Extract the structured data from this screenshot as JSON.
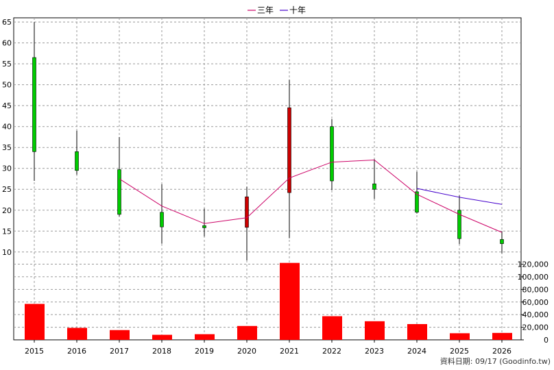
{
  "chart_data": {
    "type": "candlestick",
    "legend": [
      {
        "label": "三年",
        "color": "#cc0066"
      },
      {
        "label": "十年",
        "color": "#4400cc"
      }
    ],
    "categories": [
      "2015",
      "2016",
      "2017",
      "2018",
      "2019",
      "2020",
      "2021",
      "2022",
      "2023",
      "2024",
      "2025",
      "2026"
    ],
    "price_axis": {
      "ylim": [
        8,
        66
      ],
      "ticks": [
        10,
        15,
        20,
        25,
        30,
        35,
        40,
        45,
        50,
        55,
        60,
        65
      ]
    },
    "volume_axis": {
      "ylim": [
        0,
        126000
      ],
      "ticks": [
        0,
        20000,
        40000,
        60000,
        80000,
        100000,
        120000
      ],
      "tick_labels": [
        "0",
        "20,000",
        "40,000",
        "60,000",
        "80,000",
        "100,000",
        "120,000"
      ]
    },
    "candles": [
      {
        "year": "2015",
        "open": 34,
        "high": 65,
        "low": 27,
        "close": 56.5
      },
      {
        "year": "2016",
        "open": 29.5,
        "high": 39,
        "low": 28.5,
        "close": 34
      },
      {
        "year": "2017",
        "open": 19,
        "high": 37.5,
        "low": 18.5,
        "close": 29.7
      },
      {
        "year": "2018",
        "open": 16,
        "high": 26.2,
        "low": 12,
        "close": 19.5
      },
      {
        "year": "2019",
        "open": 15.8,
        "high": 20.4,
        "low": 13.7,
        "close": 16.3
      },
      {
        "year": "2020",
        "open": 23.2,
        "high": 25.6,
        "low": 8,
        "close": 15.9
      },
      {
        "year": "2021",
        "open": 44.5,
        "high": 51.2,
        "low": 13.3,
        "close": 24.2
      },
      {
        "year": "2022",
        "open": 27,
        "high": 41.8,
        "low": 24.8,
        "close": 40
      },
      {
        "year": "2023",
        "open": 25,
        "high": 32.2,
        "low": 22.7,
        "close": 26.3
      },
      {
        "year": "2024",
        "open": 19.5,
        "high": 29.2,
        "low": 19.2,
        "close": 24.4
      },
      {
        "year": "2025",
        "open": 13.2,
        "high": 23.5,
        "low": 11.9,
        "close": 20
      },
      {
        "year": "2026",
        "open": 12,
        "high": 15,
        "low": 9.7,
        "close": 13
      }
    ],
    "series": [
      {
        "name": "三年",
        "color": "#cc0066",
        "values": [
          null,
          null,
          27.5,
          21,
          16.8,
          18.2,
          27.7,
          31.5,
          32,
          23.8,
          19,
          14.7
        ]
      },
      {
        "name": "十年",
        "color": "#4400cc",
        "values": [
          null,
          null,
          null,
          null,
          null,
          null,
          null,
          null,
          null,
          25.2,
          23.1,
          21.4
        ]
      }
    ],
    "volume": [
      57000,
      19000,
      15500,
      8000,
      9000,
      22000,
      122000,
      37500,
      29500,
      25000,
      10500,
      11000
    ],
    "grid": true
  },
  "footer": {
    "source_text": "資料日期: 09/17  (Goodinfo.tw)"
  },
  "colors": {
    "up": "#00cc00",
    "down": "#cc0000",
    "volume": "#ff0000",
    "grid": "#999999"
  }
}
